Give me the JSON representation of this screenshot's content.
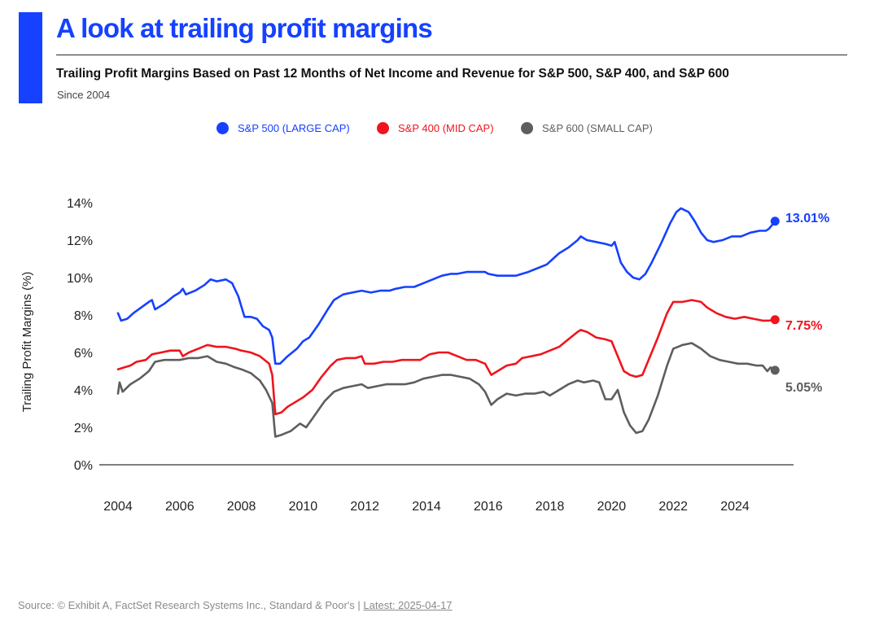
{
  "header": {
    "title": "A look at trailing profit margins",
    "subtitle": "Trailing Profit Margins Based on Past 12 Months of Net Income and Revenue for S&P 500, S&P 400, and S&P 600",
    "since": "Since 2004",
    "accent_color": "#1541ff"
  },
  "footer": {
    "source": "Source: © Exhibit A, FactSet Research Systems Inc., Standard & Poor's | ",
    "latest": "Latest: 2025-04-17"
  },
  "chart_data": {
    "type": "line",
    "ylabel": "Trailing Profit Margins (%)",
    "xlabel": "",
    "ylim": [
      0,
      14
    ],
    "xlim": [
      2004,
      2026.5
    ],
    "yticks": [
      "0%",
      "2%",
      "4%",
      "6%",
      "8%",
      "10%",
      "12%",
      "14%"
    ],
    "xticks": [
      "2004",
      "2006",
      "2008",
      "2010",
      "2012",
      "2014",
      "2016",
      "2018",
      "2020",
      "2022",
      "2024"
    ],
    "grid": false,
    "legend_position": "top-center",
    "series": [
      {
        "name": "S&P 500 (LARGE CAP)",
        "color": "#1541ff",
        "end_label": "13.01%",
        "points": [
          [
            2004.0,
            8.1
          ],
          [
            2004.1,
            7.7
          ],
          [
            2004.3,
            7.8
          ],
          [
            2004.5,
            8.1
          ],
          [
            2004.75,
            8.4
          ],
          [
            2005.0,
            8.7
          ],
          [
            2005.1,
            8.8
          ],
          [
            2005.2,
            8.3
          ],
          [
            2005.5,
            8.6
          ],
          [
            2005.8,
            9.0
          ],
          [
            2006.0,
            9.2
          ],
          [
            2006.1,
            9.4
          ],
          [
            2006.2,
            9.1
          ],
          [
            2006.5,
            9.3
          ],
          [
            2006.8,
            9.6
          ],
          [
            2007.0,
            9.9
          ],
          [
            2007.2,
            9.8
          ],
          [
            2007.5,
            9.9
          ],
          [
            2007.7,
            9.7
          ],
          [
            2007.9,
            9.0
          ],
          [
            2008.1,
            7.9
          ],
          [
            2008.3,
            7.9
          ],
          [
            2008.5,
            7.8
          ],
          [
            2008.7,
            7.4
          ],
          [
            2008.9,
            7.2
          ],
          [
            2009.0,
            6.8
          ],
          [
            2009.1,
            5.4
          ],
          [
            2009.25,
            5.4
          ],
          [
            2009.5,
            5.8
          ],
          [
            2009.8,
            6.2
          ],
          [
            2010.0,
            6.6
          ],
          [
            2010.2,
            6.8
          ],
          [
            2010.5,
            7.5
          ],
          [
            2010.8,
            8.3
          ],
          [
            2011.0,
            8.8
          ],
          [
            2011.3,
            9.1
          ],
          [
            2011.6,
            9.2
          ],
          [
            2011.9,
            9.3
          ],
          [
            2012.2,
            9.2
          ],
          [
            2012.5,
            9.3
          ],
          [
            2012.8,
            9.3
          ],
          [
            2013.0,
            9.4
          ],
          [
            2013.3,
            9.5
          ],
          [
            2013.6,
            9.5
          ],
          [
            2013.9,
            9.7
          ],
          [
            2014.2,
            9.9
          ],
          [
            2014.5,
            10.1
          ],
          [
            2014.8,
            10.2
          ],
          [
            2015.0,
            10.2
          ],
          [
            2015.3,
            10.3
          ],
          [
            2015.6,
            10.3
          ],
          [
            2015.9,
            10.3
          ],
          [
            2016.0,
            10.2
          ],
          [
            2016.3,
            10.1
          ],
          [
            2016.6,
            10.1
          ],
          [
            2016.9,
            10.1
          ],
          [
            2017.1,
            10.2
          ],
          [
            2017.3,
            10.3
          ],
          [
            2017.6,
            10.5
          ],
          [
            2017.9,
            10.7
          ],
          [
            2018.1,
            11.0
          ],
          [
            2018.3,
            11.3
          ],
          [
            2018.6,
            11.6
          ],
          [
            2018.9,
            12.0
          ],
          [
            2019.0,
            12.2
          ],
          [
            2019.2,
            12.0
          ],
          [
            2019.5,
            11.9
          ],
          [
            2019.8,
            11.8
          ],
          [
            2020.0,
            11.7
          ],
          [
            2020.1,
            11.9
          ],
          [
            2020.3,
            10.8
          ],
          [
            2020.5,
            10.3
          ],
          [
            2020.7,
            10.0
          ],
          [
            2020.9,
            9.9
          ],
          [
            2021.1,
            10.2
          ],
          [
            2021.3,
            10.8
          ],
          [
            2021.6,
            11.8
          ],
          [
            2021.9,
            12.9
          ],
          [
            2022.1,
            13.5
          ],
          [
            2022.25,
            13.7
          ],
          [
            2022.5,
            13.5
          ],
          [
            2022.7,
            13.0
          ],
          [
            2022.9,
            12.4
          ],
          [
            2023.1,
            12.0
          ],
          [
            2023.3,
            11.9
          ],
          [
            2023.6,
            12.0
          ],
          [
            2023.9,
            12.2
          ],
          [
            2024.2,
            12.2
          ],
          [
            2024.5,
            12.4
          ],
          [
            2024.8,
            12.5
          ],
          [
            2025.0,
            12.5
          ],
          [
            2025.1,
            12.6
          ],
          [
            2025.2,
            12.8
          ],
          [
            2025.3,
            13.01
          ]
        ]
      },
      {
        "name": "S&P 400 (MID CAP)",
        "color": "#f0141e",
        "end_label": "7.75%",
        "points": [
          [
            2004.0,
            5.1
          ],
          [
            2004.2,
            5.2
          ],
          [
            2004.4,
            5.3
          ],
          [
            2004.6,
            5.5
          ],
          [
            2004.9,
            5.6
          ],
          [
            2005.1,
            5.9
          ],
          [
            2005.4,
            6.0
          ],
          [
            2005.7,
            6.1
          ],
          [
            2006.0,
            6.1
          ],
          [
            2006.1,
            5.8
          ],
          [
            2006.3,
            6.0
          ],
          [
            2006.6,
            6.2
          ],
          [
            2006.9,
            6.4
          ],
          [
            2007.2,
            6.3
          ],
          [
            2007.5,
            6.3
          ],
          [
            2007.8,
            6.2
          ],
          [
            2008.0,
            6.1
          ],
          [
            2008.3,
            6.0
          ],
          [
            2008.6,
            5.8
          ],
          [
            2008.9,
            5.4
          ],
          [
            2009.0,
            4.8
          ],
          [
            2009.1,
            2.7
          ],
          [
            2009.3,
            2.8
          ],
          [
            2009.5,
            3.1
          ],
          [
            2009.8,
            3.4
          ],
          [
            2010.0,
            3.6
          ],
          [
            2010.3,
            4.0
          ],
          [
            2010.6,
            4.7
          ],
          [
            2010.9,
            5.3
          ],
          [
            2011.1,
            5.6
          ],
          [
            2011.4,
            5.7
          ],
          [
            2011.7,
            5.7
          ],
          [
            2011.9,
            5.8
          ],
          [
            2012.0,
            5.4
          ],
          [
            2012.3,
            5.4
          ],
          [
            2012.6,
            5.5
          ],
          [
            2012.9,
            5.5
          ],
          [
            2013.2,
            5.6
          ],
          [
            2013.5,
            5.6
          ],
          [
            2013.8,
            5.6
          ],
          [
            2014.1,
            5.9
          ],
          [
            2014.4,
            6.0
          ],
          [
            2014.7,
            6.0
          ],
          [
            2015.0,
            5.8
          ],
          [
            2015.3,
            5.6
          ],
          [
            2015.6,
            5.6
          ],
          [
            2015.9,
            5.4
          ],
          [
            2016.1,
            4.8
          ],
          [
            2016.3,
            5.0
          ],
          [
            2016.6,
            5.3
          ],
          [
            2016.9,
            5.4
          ],
          [
            2017.1,
            5.7
          ],
          [
            2017.4,
            5.8
          ],
          [
            2017.7,
            5.9
          ],
          [
            2018.0,
            6.1
          ],
          [
            2018.3,
            6.3
          ],
          [
            2018.6,
            6.7
          ],
          [
            2018.9,
            7.1
          ],
          [
            2019.0,
            7.2
          ],
          [
            2019.2,
            7.1
          ],
          [
            2019.5,
            6.8
          ],
          [
            2019.8,
            6.7
          ],
          [
            2020.0,
            6.6
          ],
          [
            2020.2,
            5.8
          ],
          [
            2020.4,
            5.0
          ],
          [
            2020.6,
            4.8
          ],
          [
            2020.8,
            4.7
          ],
          [
            2021.0,
            4.8
          ],
          [
            2021.2,
            5.6
          ],
          [
            2021.5,
            6.8
          ],
          [
            2021.8,
            8.1
          ],
          [
            2022.0,
            8.7
          ],
          [
            2022.3,
            8.7
          ],
          [
            2022.6,
            8.8
          ],
          [
            2022.9,
            8.7
          ],
          [
            2023.1,
            8.4
          ],
          [
            2023.4,
            8.1
          ],
          [
            2023.7,
            7.9
          ],
          [
            2024.0,
            7.8
          ],
          [
            2024.3,
            7.9
          ],
          [
            2024.6,
            7.8
          ],
          [
            2024.9,
            7.7
          ],
          [
            2025.1,
            7.7
          ],
          [
            2025.3,
            7.75
          ]
        ]
      },
      {
        "name": "S&P 600 (SMALL CAP)",
        "color": "#5e5e5e",
        "end_label": "5.05%",
        "points": [
          [
            2004.0,
            3.8
          ],
          [
            2004.05,
            4.4
          ],
          [
            2004.15,
            3.9
          ],
          [
            2004.4,
            4.3
          ],
          [
            2004.7,
            4.6
          ],
          [
            2005.0,
            5.0
          ],
          [
            2005.2,
            5.5
          ],
          [
            2005.5,
            5.6
          ],
          [
            2005.8,
            5.6
          ],
          [
            2006.0,
            5.6
          ],
          [
            2006.3,
            5.7
          ],
          [
            2006.6,
            5.7
          ],
          [
            2006.9,
            5.8
          ],
          [
            2007.2,
            5.5
          ],
          [
            2007.5,
            5.4
          ],
          [
            2007.8,
            5.2
          ],
          [
            2008.0,
            5.1
          ],
          [
            2008.3,
            4.9
          ],
          [
            2008.6,
            4.5
          ],
          [
            2008.8,
            4.0
          ],
          [
            2009.0,
            3.3
          ],
          [
            2009.1,
            1.5
          ],
          [
            2009.3,
            1.6
          ],
          [
            2009.6,
            1.8
          ],
          [
            2009.9,
            2.2
          ],
          [
            2010.1,
            2.0
          ],
          [
            2010.4,
            2.7
          ],
          [
            2010.7,
            3.4
          ],
          [
            2011.0,
            3.9
          ],
          [
            2011.3,
            4.1
          ],
          [
            2011.6,
            4.2
          ],
          [
            2011.9,
            4.3
          ],
          [
            2012.1,
            4.1
          ],
          [
            2012.4,
            4.2
          ],
          [
            2012.7,
            4.3
          ],
          [
            2013.0,
            4.3
          ],
          [
            2013.3,
            4.3
          ],
          [
            2013.6,
            4.4
          ],
          [
            2013.9,
            4.6
          ],
          [
            2014.2,
            4.7
          ],
          [
            2014.5,
            4.8
          ],
          [
            2014.8,
            4.8
          ],
          [
            2015.1,
            4.7
          ],
          [
            2015.4,
            4.6
          ],
          [
            2015.7,
            4.3
          ],
          [
            2015.9,
            3.9
          ],
          [
            2016.1,
            3.2
          ],
          [
            2016.3,
            3.5
          ],
          [
            2016.6,
            3.8
          ],
          [
            2016.9,
            3.7
          ],
          [
            2017.2,
            3.8
          ],
          [
            2017.5,
            3.8
          ],
          [
            2017.8,
            3.9
          ],
          [
            2018.0,
            3.7
          ],
          [
            2018.3,
            4.0
          ],
          [
            2018.6,
            4.3
          ],
          [
            2018.9,
            4.5
          ],
          [
            2019.1,
            4.4
          ],
          [
            2019.4,
            4.5
          ],
          [
            2019.6,
            4.4
          ],
          [
            2019.8,
            3.5
          ],
          [
            2020.0,
            3.5
          ],
          [
            2020.2,
            4.0
          ],
          [
            2020.4,
            2.8
          ],
          [
            2020.6,
            2.1
          ],
          [
            2020.8,
            1.7
          ],
          [
            2021.0,
            1.8
          ],
          [
            2021.2,
            2.4
          ],
          [
            2021.5,
            3.7
          ],
          [
            2021.8,
            5.3
          ],
          [
            2022.0,
            6.2
          ],
          [
            2022.3,
            6.4
          ],
          [
            2022.6,
            6.5
          ],
          [
            2022.9,
            6.2
          ],
          [
            2023.2,
            5.8
          ],
          [
            2023.5,
            5.6
          ],
          [
            2023.8,
            5.5
          ],
          [
            2024.1,
            5.4
          ],
          [
            2024.4,
            5.4
          ],
          [
            2024.7,
            5.3
          ],
          [
            2024.9,
            5.3
          ],
          [
            2025.05,
            5.0
          ],
          [
            2025.15,
            5.2
          ],
          [
            2025.3,
            5.05
          ]
        ]
      }
    ]
  }
}
